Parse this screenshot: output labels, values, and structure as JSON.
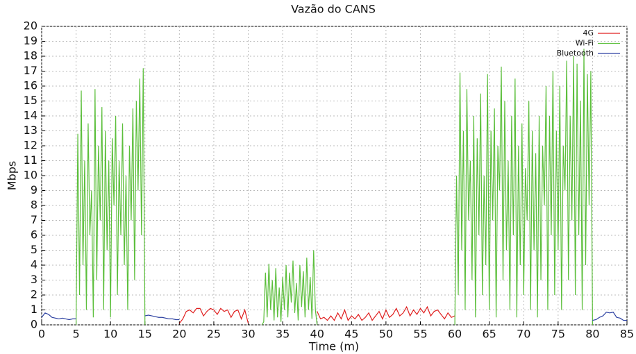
{
  "chart_data": {
    "type": "line",
    "title": "Vazão do CANS",
    "xlabel": "Time (m)",
    "ylabel": "Mbps",
    "xlim": [
      0,
      85
    ],
    "ylim": [
      0,
      20
    ],
    "xticks": [
      0,
      5,
      10,
      15,
      20,
      25,
      30,
      35,
      40,
      45,
      50,
      55,
      60,
      65,
      70,
      75,
      80,
      85
    ],
    "yticks": [
      0,
      1,
      2,
      3,
      4,
      5,
      6,
      7,
      8,
      9,
      10,
      11,
      12,
      13,
      14,
      15,
      16,
      17,
      18,
      19,
      20
    ],
    "grid": true,
    "legend": "upper right",
    "series": [
      {
        "name": "4G",
        "color": "#e02020",
        "x": [
          20,
          20.5,
          21,
          21.5,
          22,
          22.5,
          23,
          23.5,
          24,
          24.5,
          25,
          25.5,
          26,
          26.5,
          27,
          27.5,
          28,
          28.5,
          29,
          29.5,
          30,
          35,
          40,
          40.5,
          41,
          41.5,
          42,
          42.5,
          43,
          43.5,
          44,
          44.5,
          45,
          45.5,
          46,
          46.5,
          47,
          47.5,
          48,
          48.5,
          49,
          49.5,
          50,
          50.5,
          51,
          51.5,
          52,
          52.5,
          53,
          53.5,
          54,
          54.5,
          55,
          55.5,
          56,
          56.5,
          57,
          57.5,
          58,
          58.5,
          59,
          59.5,
          60
        ],
        "values": [
          0.1,
          0.4,
          0.9,
          1.0,
          0.8,
          1.1,
          1.1,
          0.6,
          0.9,
          1.1,
          1.0,
          0.7,
          1.1,
          0.9,
          1.0,
          0.5,
          0.9,
          1.0,
          0.4,
          1.0,
          0.1,
          null,
          0.9,
          0.4,
          0.5,
          0.3,
          0.6,
          0.3,
          0.8,
          0.4,
          1.0,
          0.3,
          0.6,
          0.4,
          0.7,
          0.3,
          0.5,
          0.8,
          0.3,
          0.6,
          0.9,
          0.4,
          1.0,
          0.5,
          0.7,
          1.1,
          0.6,
          0.8,
          1.2,
          0.6,
          1.0,
          0.7,
          1.1,
          0.8,
          1.2,
          0.6,
          0.9,
          1.0,
          0.7,
          0.4,
          0.8,
          0.5,
          0.6
        ]
      },
      {
        "name": "Wi-Fi",
        "color": "#5cbf3c",
        "x": [
          5,
          5.25,
          5.5,
          5.75,
          6,
          6.25,
          6.5,
          6.75,
          7,
          7.25,
          7.5,
          7.75,
          8,
          8.25,
          8.5,
          8.75,
          9,
          9.25,
          9.5,
          9.75,
          10,
          10.25,
          10.5,
          10.75,
          11,
          11.25,
          11.5,
          11.75,
          12,
          12.25,
          12.5,
          12.75,
          13,
          13.25,
          13.5,
          13.75,
          14,
          14.25,
          14.5,
          14.75,
          15,
          20,
          32,
          32.25,
          32.5,
          32.75,
          33,
          33.25,
          33.5,
          33.75,
          34,
          34.25,
          34.5,
          34.75,
          35,
          35.25,
          35.5,
          35.75,
          36,
          36.25,
          36.5,
          36.75,
          37,
          37.25,
          37.5,
          37.75,
          38,
          38.25,
          38.5,
          38.75,
          39,
          39.25,
          39.5,
          39.75,
          40,
          50,
          60,
          60.25,
          60.5,
          60.75,
          61,
          61.25,
          61.5,
          61.75,
          62,
          62.25,
          62.5,
          62.75,
          63,
          63.25,
          63.5,
          63.75,
          64,
          64.25,
          64.5,
          64.75,
          65,
          65.25,
          65.5,
          65.75,
          66,
          66.25,
          66.5,
          66.75,
          67,
          67.25,
          67.5,
          67.75,
          68,
          68.25,
          68.5,
          68.75,
          69,
          69.25,
          69.5,
          69.75,
          70,
          70.25,
          70.5,
          70.75,
          71,
          71.25,
          71.5,
          71.75,
          72,
          72.25,
          72.5,
          72.75,
          73,
          73.25,
          73.5,
          73.75,
          74,
          74.25,
          74.5,
          74.75,
          75,
          75.25,
          75.5,
          75.75,
          76,
          76.25,
          76.5,
          76.75,
          77,
          77.25,
          77.5,
          77.75,
          78,
          78.25,
          78.5,
          78.75,
          79,
          79.25,
          79.5,
          79.75,
          80
        ],
        "values": [
          0,
          12.8,
          2,
          15.7,
          4,
          11,
          1,
          13.5,
          6,
          9,
          0.5,
          15.8,
          3,
          12,
          7,
          14.6,
          1,
          13,
          5,
          11,
          0.5,
          12.5,
          8,
          14,
          2,
          11,
          6,
          13.5,
          4,
          10,
          1,
          12,
          7,
          14.5,
          3,
          15,
          9,
          16.5,
          6,
          17.2,
          0,
          null,
          0,
          0.2,
          3.5,
          0.5,
          4.1,
          1,
          3,
          0.3,
          3.8,
          0.5,
          2.5,
          0.2,
          3.2,
          1,
          4,
          0.5,
          3.5,
          1.5,
          4.3,
          0.8,
          2.8,
          0.3,
          4,
          1.2,
          3.6,
          0.5,
          4.5,
          1,
          3.2,
          0.4,
          5,
          1,
          0,
          null,
          0,
          10,
          2,
          16.9,
          5,
          13,
          1,
          15.8,
          7,
          11,
          3,
          14,
          0.5,
          12.5,
          6,
          15.5,
          2,
          10,
          4,
          16.8,
          1,
          13,
          7,
          14.5,
          0.5,
          12,
          9,
          17.3,
          3,
          15,
          5,
          11,
          1,
          14,
          6,
          16.5,
          0.5,
          12,
          4,
          13.5,
          2,
          10.5,
          7,
          15,
          1,
          13,
          5,
          11.5,
          0.5,
          14,
          3,
          12,
          8,
          16,
          1,
          14,
          6,
          17,
          2,
          13,
          5,
          16,
          1,
          12,
          9,
          17.7,
          3,
          14,
          7,
          18,
          2,
          17.5,
          6,
          15,
          1,
          18.5,
          4,
          16.8,
          8,
          17,
          0
        ]
      },
      {
        "name": "Bluetooth",
        "color": "#2a3fa0",
        "x": [
          0,
          0.5,
          1,
          1.5,
          2,
          2.5,
          3,
          3.5,
          4,
          4.5,
          5,
          10,
          15,
          15.5,
          16,
          16.5,
          17,
          17.5,
          18,
          18.5,
          19,
          19.5,
          20,
          50,
          80,
          80.5,
          81,
          81.5,
          82,
          82.5,
          83,
          83.5,
          84,
          84.5,
          85
        ],
        "values": [
          0.5,
          0.8,
          0.7,
          0.5,
          0.45,
          0.4,
          0.45,
          0.4,
          0.35,
          0.4,
          0.4,
          null,
          0.6,
          0.65,
          0.6,
          0.55,
          0.5,
          0.5,
          0.45,
          0.4,
          0.4,
          0.35,
          0.35,
          null,
          0.3,
          0.35,
          0.5,
          0.6,
          0.85,
          0.8,
          0.85,
          0.5,
          0.45,
          0.3,
          0.3
        ]
      }
    ]
  }
}
